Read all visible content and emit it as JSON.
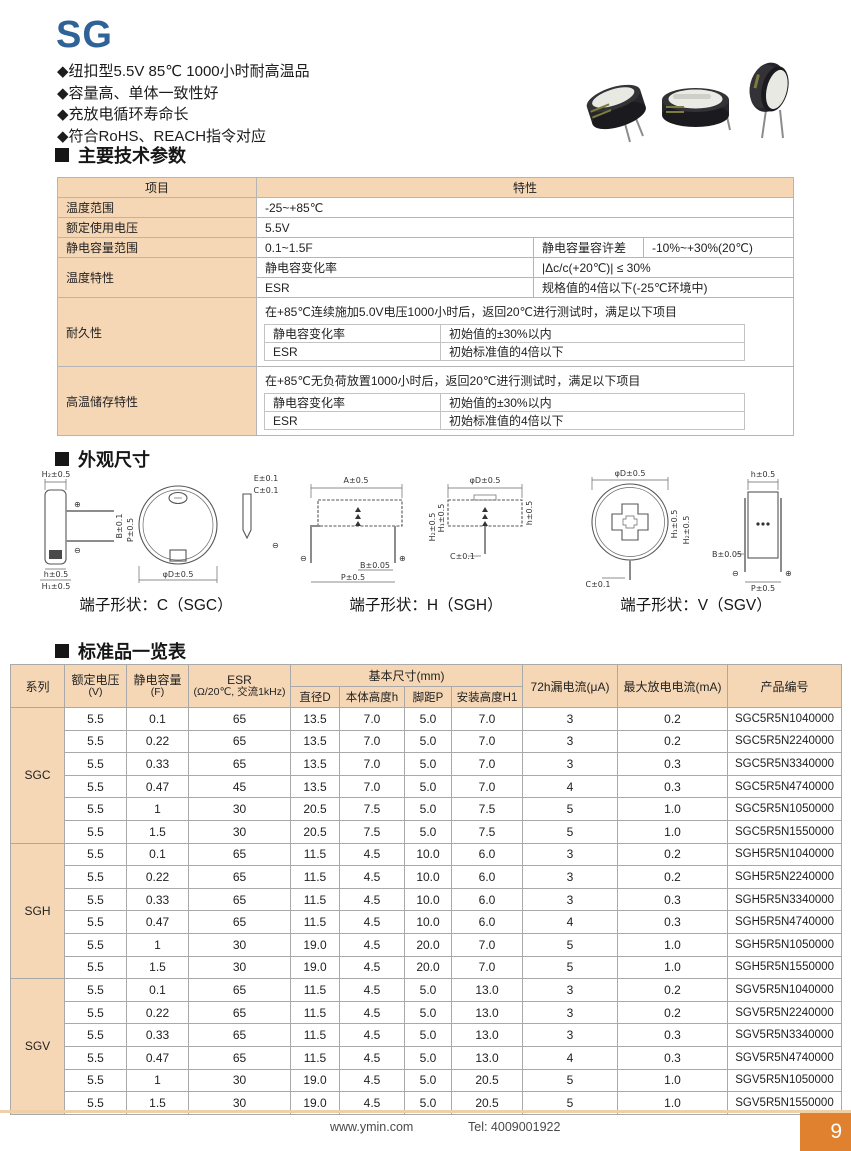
{
  "header": {
    "series_title": "SG",
    "features": [
      "◆纽扣型5.5V 85℃ 1000小时耐高温品",
      "◆容量高、单体一致性好",
      "◆充放电循环寿命长",
      "◆符合RoHS、REACH指令对应"
    ]
  },
  "sections": {
    "params": "主要技术参数",
    "outline": "外观尺寸",
    "standard": "标准品一览表"
  },
  "params_table": {
    "col_item": "项目",
    "col_spec": "特性",
    "rows": {
      "temp_range_label": "温度范围",
      "temp_range_value": "-25~+85℃",
      "voltage_label": "额定使用电压",
      "voltage_value": "5.5V",
      "cap_label": "静电容量范围",
      "cap_value": "0.1~1.5F",
      "cap_tol_label": "静电容量容许差",
      "cap_tol_value": "-10%~+30%(20℃)",
      "temp_char_label": "温度特性",
      "temp_char_k1": "静电容变化率",
      "temp_char_v1": "|Δc/c(+20℃)| ≤ 30%",
      "temp_char_k2": "ESR",
      "temp_char_v2": "规格值的4倍以下(-25℃环境中)",
      "endurance_label": "耐久性",
      "endurance_intro": "在+85℃连续施加5.0V电压1000小时后，返回20℃进行测试时，满足以下项目",
      "endurance_k1": "静电容变化率",
      "endurance_v1": "初始值的±30%以内",
      "endurance_k2": "ESR",
      "endurance_v2": "初始标准值的4倍以下",
      "storage_label": "高温储存特性",
      "storage_intro": "在+85℃无负荷放置1000小时后，返回20℃进行测试时，满足以下项目",
      "storage_k1": "静电容变化率",
      "storage_v1": "初始值的±30%以内",
      "storage_k2": "ESR",
      "storage_v2": "初始标准值的4倍以下"
    }
  },
  "outline": {
    "sym_plus": "⊕",
    "sym_minus": "⊖",
    "sgc": {
      "caption": "端子形状：C（SGC）",
      "dims": [
        "H₂±0.5",
        "E±0.1",
        "C±0.1",
        "B±0.1",
        "P±0.5",
        "h±0.5",
        "H₁±0.5",
        "φD±0.5"
      ]
    },
    "sgh": {
      "caption": "端子形状：H（SGH）",
      "dims": [
        "A±0.5",
        "φD±0.5",
        "H₂±0.5",
        "H₁±0.5",
        "h±0.5",
        "B±0.05",
        "P±0.5",
        "C±0.1"
      ]
    },
    "sgv": {
      "caption": "端子形状：V（SGV）",
      "dims": [
        "φD±0.5",
        "h±0.5",
        "H₁±0.5",
        "H₂±0.5",
        "B±0.05",
        "C±0.1",
        "P±0.5"
      ]
    }
  },
  "standard_table": {
    "header": {
      "series": "系列",
      "voltage": "额定电压",
      "voltage_unit": "(V)",
      "cap": "静电容量",
      "cap_unit": "(F)",
      "esr": "ESR",
      "esr_unit": "(Ω/20℃, 交流1kHz)",
      "dims": "基本尺寸(mm)",
      "dia": "直径D",
      "body_h": "本体高度h",
      "pitch": "脚距P",
      "mount_h": "安装高度H1",
      "leakage": "72h漏电流(μA)",
      "discharge": "最大放电电流(mA)",
      "part": "产品编号"
    },
    "groups": [
      {
        "series": "SGC",
        "rows": [
          [
            "5.5",
            "0.1",
            "65",
            "13.5",
            "7.0",
            "5.0",
            "7.0",
            "3",
            "0.2",
            "SGC5R5N1040000"
          ],
          [
            "5.5",
            "0.22",
            "65",
            "13.5",
            "7.0",
            "5.0",
            "7.0",
            "3",
            "0.2",
            "SGC5R5N2240000"
          ],
          [
            "5.5",
            "0.33",
            "65",
            "13.5",
            "7.0",
            "5.0",
            "7.0",
            "3",
            "0.3",
            "SGC5R5N3340000"
          ],
          [
            "5.5",
            "0.47",
            "45",
            "13.5",
            "7.0",
            "5.0",
            "7.0",
            "4",
            "0.3",
            "SGC5R5N4740000"
          ],
          [
            "5.5",
            "1",
            "30",
            "20.5",
            "7.5",
            "5.0",
            "7.5",
            "5",
            "1.0",
            "SGC5R5N1050000"
          ],
          [
            "5.5",
            "1.5",
            "30",
            "20.5",
            "7.5",
            "5.0",
            "7.5",
            "5",
            "1.0",
            "SGC5R5N1550000"
          ]
        ]
      },
      {
        "series": "SGH",
        "rows": [
          [
            "5.5",
            "0.1",
            "65",
            "11.5",
            "4.5",
            "10.0",
            "6.0",
            "3",
            "0.2",
            "SGH5R5N1040000"
          ],
          [
            "5.5",
            "0.22",
            "65",
            "11.5",
            "4.5",
            "10.0",
            "6.0",
            "3",
            "0.2",
            "SGH5R5N2240000"
          ],
          [
            "5.5",
            "0.33",
            "65",
            "11.5",
            "4.5",
            "10.0",
            "6.0",
            "3",
            "0.3",
            "SGH5R5N3340000"
          ],
          [
            "5.5",
            "0.47",
            "65",
            "11.5",
            "4.5",
            "10.0",
            "6.0",
            "4",
            "0.3",
            "SGH5R5N4740000"
          ],
          [
            "5.5",
            "1",
            "30",
            "19.0",
            "4.5",
            "20.0",
            "7.0",
            "5",
            "1.0",
            "SGH5R5N1050000"
          ],
          [
            "5.5",
            "1.5",
            "30",
            "19.0",
            "4.5",
            "20.0",
            "7.0",
            "5",
            "1.0",
            "SGH5R5N1550000"
          ]
        ]
      },
      {
        "series": "SGV",
        "rows": [
          [
            "5.5",
            "0.1",
            "65",
            "11.5",
            "4.5",
            "5.0",
            "13.0",
            "3",
            "0.2",
            "SGV5R5N1040000"
          ],
          [
            "5.5",
            "0.22",
            "65",
            "11.5",
            "4.5",
            "5.0",
            "13.0",
            "3",
            "0.2",
            "SGV5R5N2240000"
          ],
          [
            "5.5",
            "0.33",
            "65",
            "11.5",
            "4.5",
            "5.0",
            "13.0",
            "3",
            "0.3",
            "SGV5R5N3340000"
          ],
          [
            "5.5",
            "0.47",
            "65",
            "11.5",
            "4.5",
            "5.0",
            "13.0",
            "4",
            "0.3",
            "SGV5R5N4740000"
          ],
          [
            "5.5",
            "1",
            "30",
            "19.0",
            "4.5",
            "5.0",
            "20.5",
            "5",
            "1.0",
            "SGV5R5N1050000"
          ],
          [
            "5.5",
            "1.5",
            "30",
            "19.0",
            "4.5",
            "5.0",
            "20.5",
            "5",
            "1.0",
            "SGV5R5N1550000"
          ]
        ]
      }
    ]
  },
  "footer": {
    "website": "www.ymin.com",
    "tel": "Tel:  4009001922",
    "page": "9"
  },
  "colors": {
    "accent_blue": "#2f6397",
    "table_peach": "#f5d7b5",
    "page_badge_orange": "#e0812f",
    "footer_line_tan": "#eed0a9"
  }
}
